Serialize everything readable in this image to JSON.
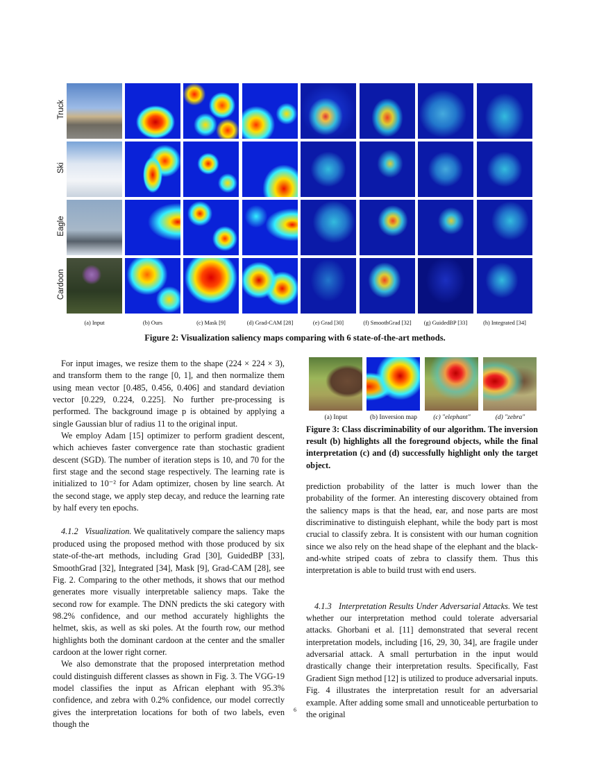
{
  "figure2": {
    "rows": [
      "Truck",
      "Ski",
      "Eagle",
      "Cardoon"
    ],
    "columns": [
      "(a) Input",
      "(b) Ours",
      "(c) Mask [9]",
      "(d) Grad-CAM [28]",
      "(e) Grad [30]",
      "(f) SmoothGrad [32]",
      "(g) GuidedBP [33]",
      "(h) Integrated [34]"
    ],
    "caption": "Figure 2: Visualization saliency maps comparing with 6 state-of-the-art methods."
  },
  "left_column": {
    "paragraphs": [
      "For input images, we resize them to the shape (224 × 224 × 3), and transform them to the range [0, 1], and then normalize them using mean vector [0.485, 0.456, 0.406] and standard deviation vector [0.229, 0.224, 0.225]. No further pre-processing is performed. The background image p is obtained by applying a single Gaussian blur of radius 11 to the original input.",
      "We employ Adam [15] optimizer to perform gradient descent, which achieves faster convergence rate than stochastic gradient descent (SGD). The number of iteration steps is 10, and 70 for the first stage and the second stage respectively. The learning rate is initialized to 10⁻² for Adam optimizer, chosen by line search. At the second stage, we apply step decay, and reduce the learning rate by half every ten epochs."
    ],
    "section_412": {
      "number": "4.1.2",
      "title": "Visualization.",
      "text": "We qualitatively compare the saliency maps produced using the proposed method with those produced by six state-of-the-art methods, including Grad [30], GuidedBP [33], SmoothGrad [32], Integrated [34], Mask [9], Grad-CAM [28], see Fig. 2. Comparing to the other methods, it shows that our method generates more visually interpretable saliency maps. Take the second row for example. The DNN predicts the ski category with 98.2% confidence, and our method accurately highlights the helmet, skis, as well as ski poles. At the fourth row, our method highlights both the dominant cardoon at the center and the smaller cardoon at the lower right corner."
    },
    "paragraph_last": "We also demonstrate that the proposed interpretation method could distinguish different classes as shown in Fig. 3. The VGG-19 model classifies the input as African elephant with 95.3% confidence, and zebra with 0.2% confidence, our model correctly gives the interpretation locations for both of two labels, even though the"
  },
  "figure3": {
    "labels": [
      "(a) Input",
      "(b) Inversion map",
      "(c) \"elephant\"",
      "(d) \"zebra\""
    ],
    "caption": "Figure 3: Class discriminability of our algorithm. The inversion result (b) highlights all the foreground objects, while the final interpretation (c) and (d) successfully highlight only the target object."
  },
  "right_column": {
    "paragraph": "prediction probability of the latter is much lower than the probability of the former. An interesting discovery obtained from the saliency maps is that the head, ear, and nose parts are most discriminative to distinguish elephant, while the body part is most crucial to classify zebra. It is consistent with our human cognition since we also rely on the head shape of the elephant and the black-and-white striped coats of zebra to classify them. Thus this interpretation is able to build trust with end users.",
    "section_413": {
      "number": "4.1.3",
      "title": "Interpretation Results Under Adversarial Attacks.",
      "text": "We test whether our interpretation method could tolerate adversarial attacks. Ghorbani et al. [11] demonstrated that several recent interpretation models, including [16, 29, 30, 34], are fragile under adversarial attack. A small perturbation in the input would drastically change their interpretation results. Specifically, Fast Gradient Sign method [12] is utilized to produce adversarial inputs. Fig. 4 illustrates the interpretation result for an adversarial example. After adding some small and unnoticeable perturbation to the original"
    }
  },
  "page_number": "6"
}
